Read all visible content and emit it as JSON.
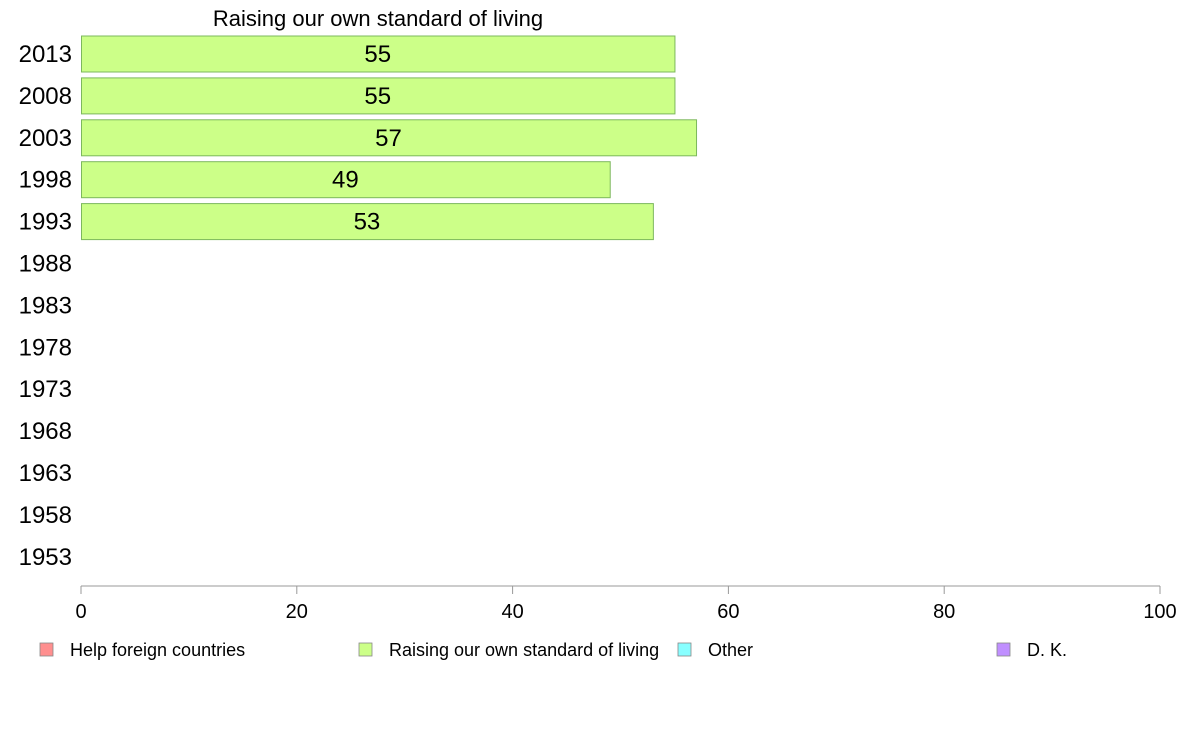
{
  "chart_data": {
    "type": "bar",
    "orientation": "horizontal",
    "title": "Raising our own standard of living",
    "categories": [
      "2013",
      "2008",
      "2003",
      "1998",
      "1993",
      "1988",
      "1983",
      "1978",
      "1973",
      "1968",
      "1963",
      "1958",
      "1953"
    ],
    "series": [
      {
        "name": "Raising our own standard of living",
        "color": "#ccff88",
        "values": [
          55,
          55,
          57,
          49,
          53,
          null,
          null,
          null,
          null,
          null,
          null,
          null,
          null
        ]
      }
    ],
    "xlim": [
      0,
      100
    ],
    "xticks": [
      0,
      20,
      40,
      60,
      80,
      100
    ],
    "grid": false,
    "legend_position": "bottom",
    "legend": [
      {
        "label": "Help foreign countries",
        "color": "#ff8f8f"
      },
      {
        "label": "Raising our own standard of living",
        "color": "#ccff88"
      },
      {
        "label": "Other",
        "color": "#88ffff"
      },
      {
        "label": "D. K.",
        "color": "#c08fff"
      }
    ]
  }
}
